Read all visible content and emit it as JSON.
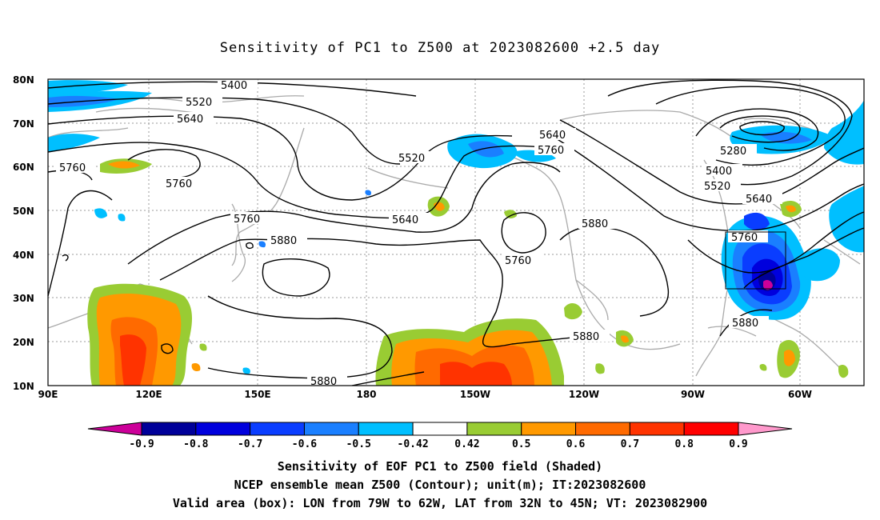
{
  "title": "Sensitivity of PC1 to Z500 at 2023082600 +2.5 day",
  "lon_ticks": [
    "90E",
    "120E",
    "150E",
    "180",
    "150W",
    "120W",
    "90W",
    "60W"
  ],
  "lat_ticks": [
    "80N",
    "70N",
    "60N",
    "50N",
    "40N",
    "30N",
    "20N",
    "10N"
  ],
  "contour_labels": {
    "c5400": "5400",
    "c5520a": "5520",
    "c5640a": "5640",
    "c5760a": "5760",
    "c5760b": "5760",
    "c5520b": "5520",
    "c5640b": "5640",
    "c5760c": "5760",
    "c5880a": "5880",
    "c5640c": "5640",
    "c5760d": "5760",
    "c5760e": "5760",
    "c5880b": "5880",
    "c5880c": "5880",
    "c5880d": "5880",
    "c5280": "5280",
    "c5400b": "5400",
    "c5520c": "5520",
    "c5640d": "5640",
    "c5760f": "5760",
    "c5880e": "5880"
  },
  "colorbar": {
    "labels": [
      "-0.9",
      "-0.8",
      "-0.7",
      "-0.6",
      "-0.5",
      "-0.42",
      "0.42",
      "0.5",
      "0.6",
      "0.7",
      "0.8",
      "0.9"
    ],
    "colors": [
      "#cc0099",
      "#000099",
      "#0000dd",
      "#0a3dff",
      "#1a7fff",
      "#00bfff",
      "#ffffff",
      "#99cc33",
      "#ff9900",
      "#ff6a00",
      "#ff3300",
      "#ff0000",
      "#ff99cc"
    ]
  },
  "footer": {
    "line1": "Sensitivity of EOF PC1 to Z500 field (Shaded)",
    "line2": "NCEP ensemble mean Z500 (Contour); unit(m); IT:2023082600",
    "line3": "Valid area (box): LON from 79W to 62W, LAT from 32N to 45N; VT: 2023082900"
  }
}
